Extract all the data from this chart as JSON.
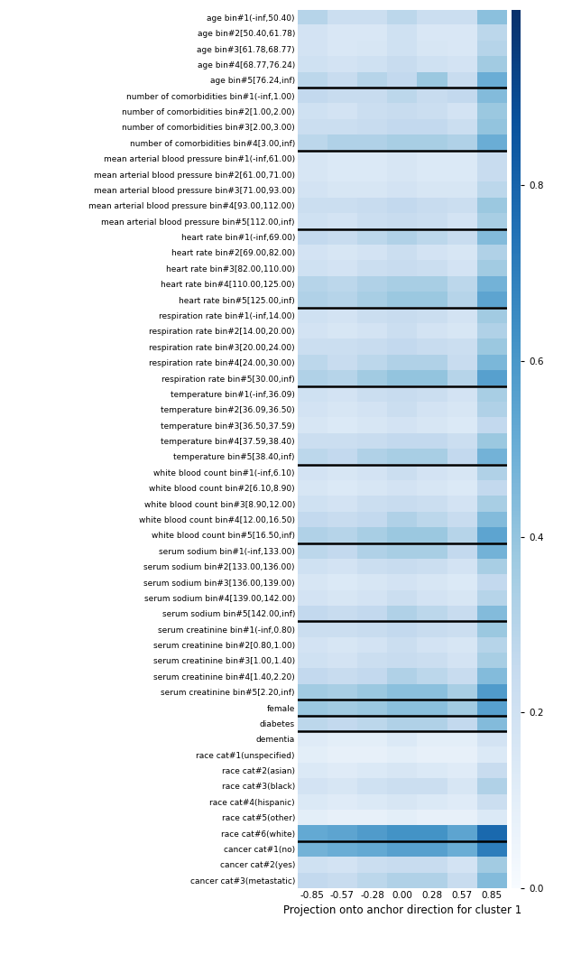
{
  "rows": [
    "age bin#1(-inf,50.40)",
    "age bin#2[50.40,61.78)",
    "age bin#3[61.78,68.77)",
    "age bin#4[68.77,76.24)",
    "age bin#5[76.24,inf)",
    "number of comorbidities bin#1(-inf,1.00)",
    "number of comorbidities bin#2[1.00,2.00)",
    "number of comorbidities bin#3[2.00,3.00)",
    "number of comorbidities bin#4[3.00,inf)",
    "mean arterial blood pressure bin#1(-inf,61.00)",
    "mean arterial blood pressure bin#2[61.00,71.00)",
    "mean arterial blood pressure bin#3[71.00,93.00)",
    "mean arterial blood pressure bin#4[93.00,112.00)",
    "mean arterial blood pressure bin#5[112.00,inf)",
    "heart rate bin#1(-inf,69.00)",
    "heart rate bin#2[69.00,82.00)",
    "heart rate bin#3[82.00,110.00)",
    "heart rate bin#4[110.00,125.00)",
    "heart rate bin#5[125.00,inf)",
    "respiration rate bin#1(-inf,14.00)",
    "respiration rate bin#2[14.00,20.00)",
    "respiration rate bin#3[20.00,24.00)",
    "respiration rate bin#4[24.00,30.00)",
    "respiration rate bin#5[30.00,inf)",
    "temperature bin#1(-inf,36.09)",
    "temperature bin#2[36.09,36.50)",
    "temperature bin#3[36.50,37.59)",
    "temperature bin#4[37.59,38.40)",
    "temperature bin#5[38.40,inf)",
    "white blood count bin#1(-inf,6.10)",
    "white blood count bin#2[6.10,8.90)",
    "white blood count bin#3[8.90,12.00)",
    "white blood count bin#4[12.00,16.50)",
    "white blood count bin#5[16.50,inf)",
    "serum sodium bin#1(-inf,133.00)",
    "serum sodium bin#2[133.00,136.00)",
    "serum sodium bin#3[136.00,139.00)",
    "serum sodium bin#4[139.00,142.00)",
    "serum sodium bin#5[142.00,inf)",
    "serum creatinine bin#1(-inf,0.80)",
    "serum creatinine bin#2[0.80,1.00)",
    "serum creatinine bin#3[1.00,1.40)",
    "serum creatinine bin#4[1.40,2.20)",
    "serum creatinine bin#5[2.20,inf)",
    "female",
    "diabetes",
    "dementia",
    "race cat#1(unspecified)",
    "race cat#2(asian)",
    "race cat#3(black)",
    "race cat#4(hispanic)",
    "race cat#5(other)",
    "race cat#6(white)",
    "cancer cat#1(no)",
    "cancer cat#2(yes)",
    "cancer cat#3(metastatic)"
  ],
  "separator_after": [
    4,
    8,
    13,
    18,
    23,
    28,
    33,
    38,
    43,
    44,
    45,
    52
  ],
  "xticklabels": [
    "-0.85",
    "-0.57",
    "-0.28",
    "0.00",
    "0.28",
    "0.57",
    "0.85"
  ],
  "xlabel": "Projection onto anchor direction for cluster 1",
  "colorbar_ticks": [
    0.0,
    0.2,
    0.4,
    0.6,
    0.8
  ],
  "vmin": 0.0,
  "vmax": 1.0,
  "n_cols": 7,
  "data": [
    [
      0.3,
      0.22,
      0.22,
      0.28,
      0.22,
      0.22,
      0.42
    ],
    [
      0.18,
      0.15,
      0.15,
      0.2,
      0.15,
      0.15,
      0.28
    ],
    [
      0.18,
      0.15,
      0.16,
      0.2,
      0.16,
      0.15,
      0.3
    ],
    [
      0.2,
      0.18,
      0.2,
      0.24,
      0.2,
      0.18,
      0.36
    ],
    [
      0.28,
      0.24,
      0.3,
      0.26,
      0.38,
      0.24,
      0.5
    ],
    [
      0.26,
      0.24,
      0.24,
      0.28,
      0.24,
      0.26,
      0.44
    ],
    [
      0.2,
      0.18,
      0.22,
      0.24,
      0.22,
      0.18,
      0.38
    ],
    [
      0.22,
      0.22,
      0.24,
      0.26,
      0.26,
      0.22,
      0.4
    ],
    [
      0.28,
      0.32,
      0.32,
      0.34,
      0.34,
      0.32,
      0.5
    ],
    [
      0.16,
      0.14,
      0.14,
      0.16,
      0.14,
      0.14,
      0.24
    ],
    [
      0.16,
      0.14,
      0.14,
      0.16,
      0.14,
      0.14,
      0.24
    ],
    [
      0.18,
      0.16,
      0.16,
      0.18,
      0.16,
      0.16,
      0.28
    ],
    [
      0.22,
      0.22,
      0.24,
      0.26,
      0.24,
      0.22,
      0.38
    ],
    [
      0.2,
      0.18,
      0.22,
      0.24,
      0.22,
      0.18,
      0.34
    ],
    [
      0.26,
      0.24,
      0.28,
      0.32,
      0.28,
      0.24,
      0.44
    ],
    [
      0.18,
      0.16,
      0.18,
      0.22,
      0.18,
      0.16,
      0.32
    ],
    [
      0.2,
      0.18,
      0.22,
      0.24,
      0.22,
      0.18,
      0.36
    ],
    [
      0.3,
      0.28,
      0.32,
      0.34,
      0.34,
      0.28,
      0.48
    ],
    [
      0.32,
      0.3,
      0.34,
      0.38,
      0.38,
      0.3,
      0.54
    ],
    [
      0.2,
      0.18,
      0.22,
      0.24,
      0.22,
      0.18,
      0.36
    ],
    [
      0.18,
      0.16,
      0.18,
      0.22,
      0.18,
      0.16,
      0.32
    ],
    [
      0.22,
      0.22,
      0.24,
      0.26,
      0.24,
      0.22,
      0.38
    ],
    [
      0.28,
      0.24,
      0.28,
      0.32,
      0.32,
      0.24,
      0.46
    ],
    [
      0.32,
      0.3,
      0.36,
      0.4,
      0.4,
      0.3,
      0.56
    ],
    [
      0.2,
      0.18,
      0.22,
      0.24,
      0.22,
      0.18,
      0.34
    ],
    [
      0.18,
      0.16,
      0.18,
      0.22,
      0.18,
      0.16,
      0.32
    ],
    [
      0.16,
      0.14,
      0.16,
      0.18,
      0.16,
      0.14,
      0.26
    ],
    [
      0.22,
      0.22,
      0.24,
      0.26,
      0.26,
      0.22,
      0.38
    ],
    [
      0.28,
      0.26,
      0.32,
      0.34,
      0.34,
      0.26,
      0.48
    ],
    [
      0.18,
      0.16,
      0.18,
      0.22,
      0.18,
      0.16,
      0.32
    ],
    [
      0.16,
      0.14,
      0.16,
      0.18,
      0.16,
      0.14,
      0.26
    ],
    [
      0.2,
      0.18,
      0.22,
      0.24,
      0.22,
      0.18,
      0.34
    ],
    [
      0.26,
      0.24,
      0.26,
      0.32,
      0.28,
      0.24,
      0.44
    ],
    [
      0.32,
      0.3,
      0.34,
      0.38,
      0.38,
      0.3,
      0.54
    ],
    [
      0.28,
      0.26,
      0.32,
      0.34,
      0.34,
      0.26,
      0.48
    ],
    [
      0.2,
      0.18,
      0.22,
      0.24,
      0.22,
      0.18,
      0.34
    ],
    [
      0.16,
      0.14,
      0.16,
      0.18,
      0.16,
      0.14,
      0.26
    ],
    [
      0.18,
      0.16,
      0.18,
      0.22,
      0.18,
      0.16,
      0.3
    ],
    [
      0.26,
      0.24,
      0.26,
      0.32,
      0.28,
      0.24,
      0.44
    ],
    [
      0.22,
      0.22,
      0.24,
      0.26,
      0.24,
      0.22,
      0.38
    ],
    [
      0.18,
      0.16,
      0.18,
      0.22,
      0.18,
      0.16,
      0.3
    ],
    [
      0.2,
      0.18,
      0.22,
      0.24,
      0.22,
      0.18,
      0.34
    ],
    [
      0.26,
      0.24,
      0.26,
      0.32,
      0.28,
      0.24,
      0.44
    ],
    [
      0.36,
      0.34,
      0.38,
      0.42,
      0.42,
      0.34,
      0.58
    ],
    [
      0.38,
      0.36,
      0.38,
      0.42,
      0.42,
      0.36,
      0.56
    ],
    [
      0.28,
      0.26,
      0.28,
      0.32,
      0.32,
      0.26,
      0.44
    ],
    [
      0.12,
      0.1,
      0.1,
      0.14,
      0.1,
      0.1,
      0.18
    ],
    [
      0.1,
      0.08,
      0.08,
      0.1,
      0.08,
      0.08,
      0.14
    ],
    [
      0.14,
      0.12,
      0.14,
      0.16,
      0.14,
      0.12,
      0.24
    ],
    [
      0.18,
      0.16,
      0.2,
      0.22,
      0.22,
      0.16,
      0.32
    ],
    [
      0.14,
      0.12,
      0.14,
      0.16,
      0.14,
      0.12,
      0.22
    ],
    [
      0.1,
      0.08,
      0.08,
      0.1,
      0.08,
      0.08,
      0.14
    ],
    [
      0.52,
      0.54,
      0.58,
      0.62,
      0.62,
      0.54,
      0.78
    ],
    [
      0.48,
      0.5,
      0.52,
      0.56,
      0.56,
      0.5,
      0.7
    ],
    [
      0.2,
      0.18,
      0.22,
      0.24,
      0.24,
      0.18,
      0.36
    ],
    [
      0.26,
      0.24,
      0.28,
      0.32,
      0.32,
      0.24,
      0.44
    ]
  ],
  "figsize": [
    6.34,
    10.58
  ],
  "label_fontsize": 6.5,
  "tick_fontsize": 7.5,
  "xlabel_fontsize": 8.5
}
